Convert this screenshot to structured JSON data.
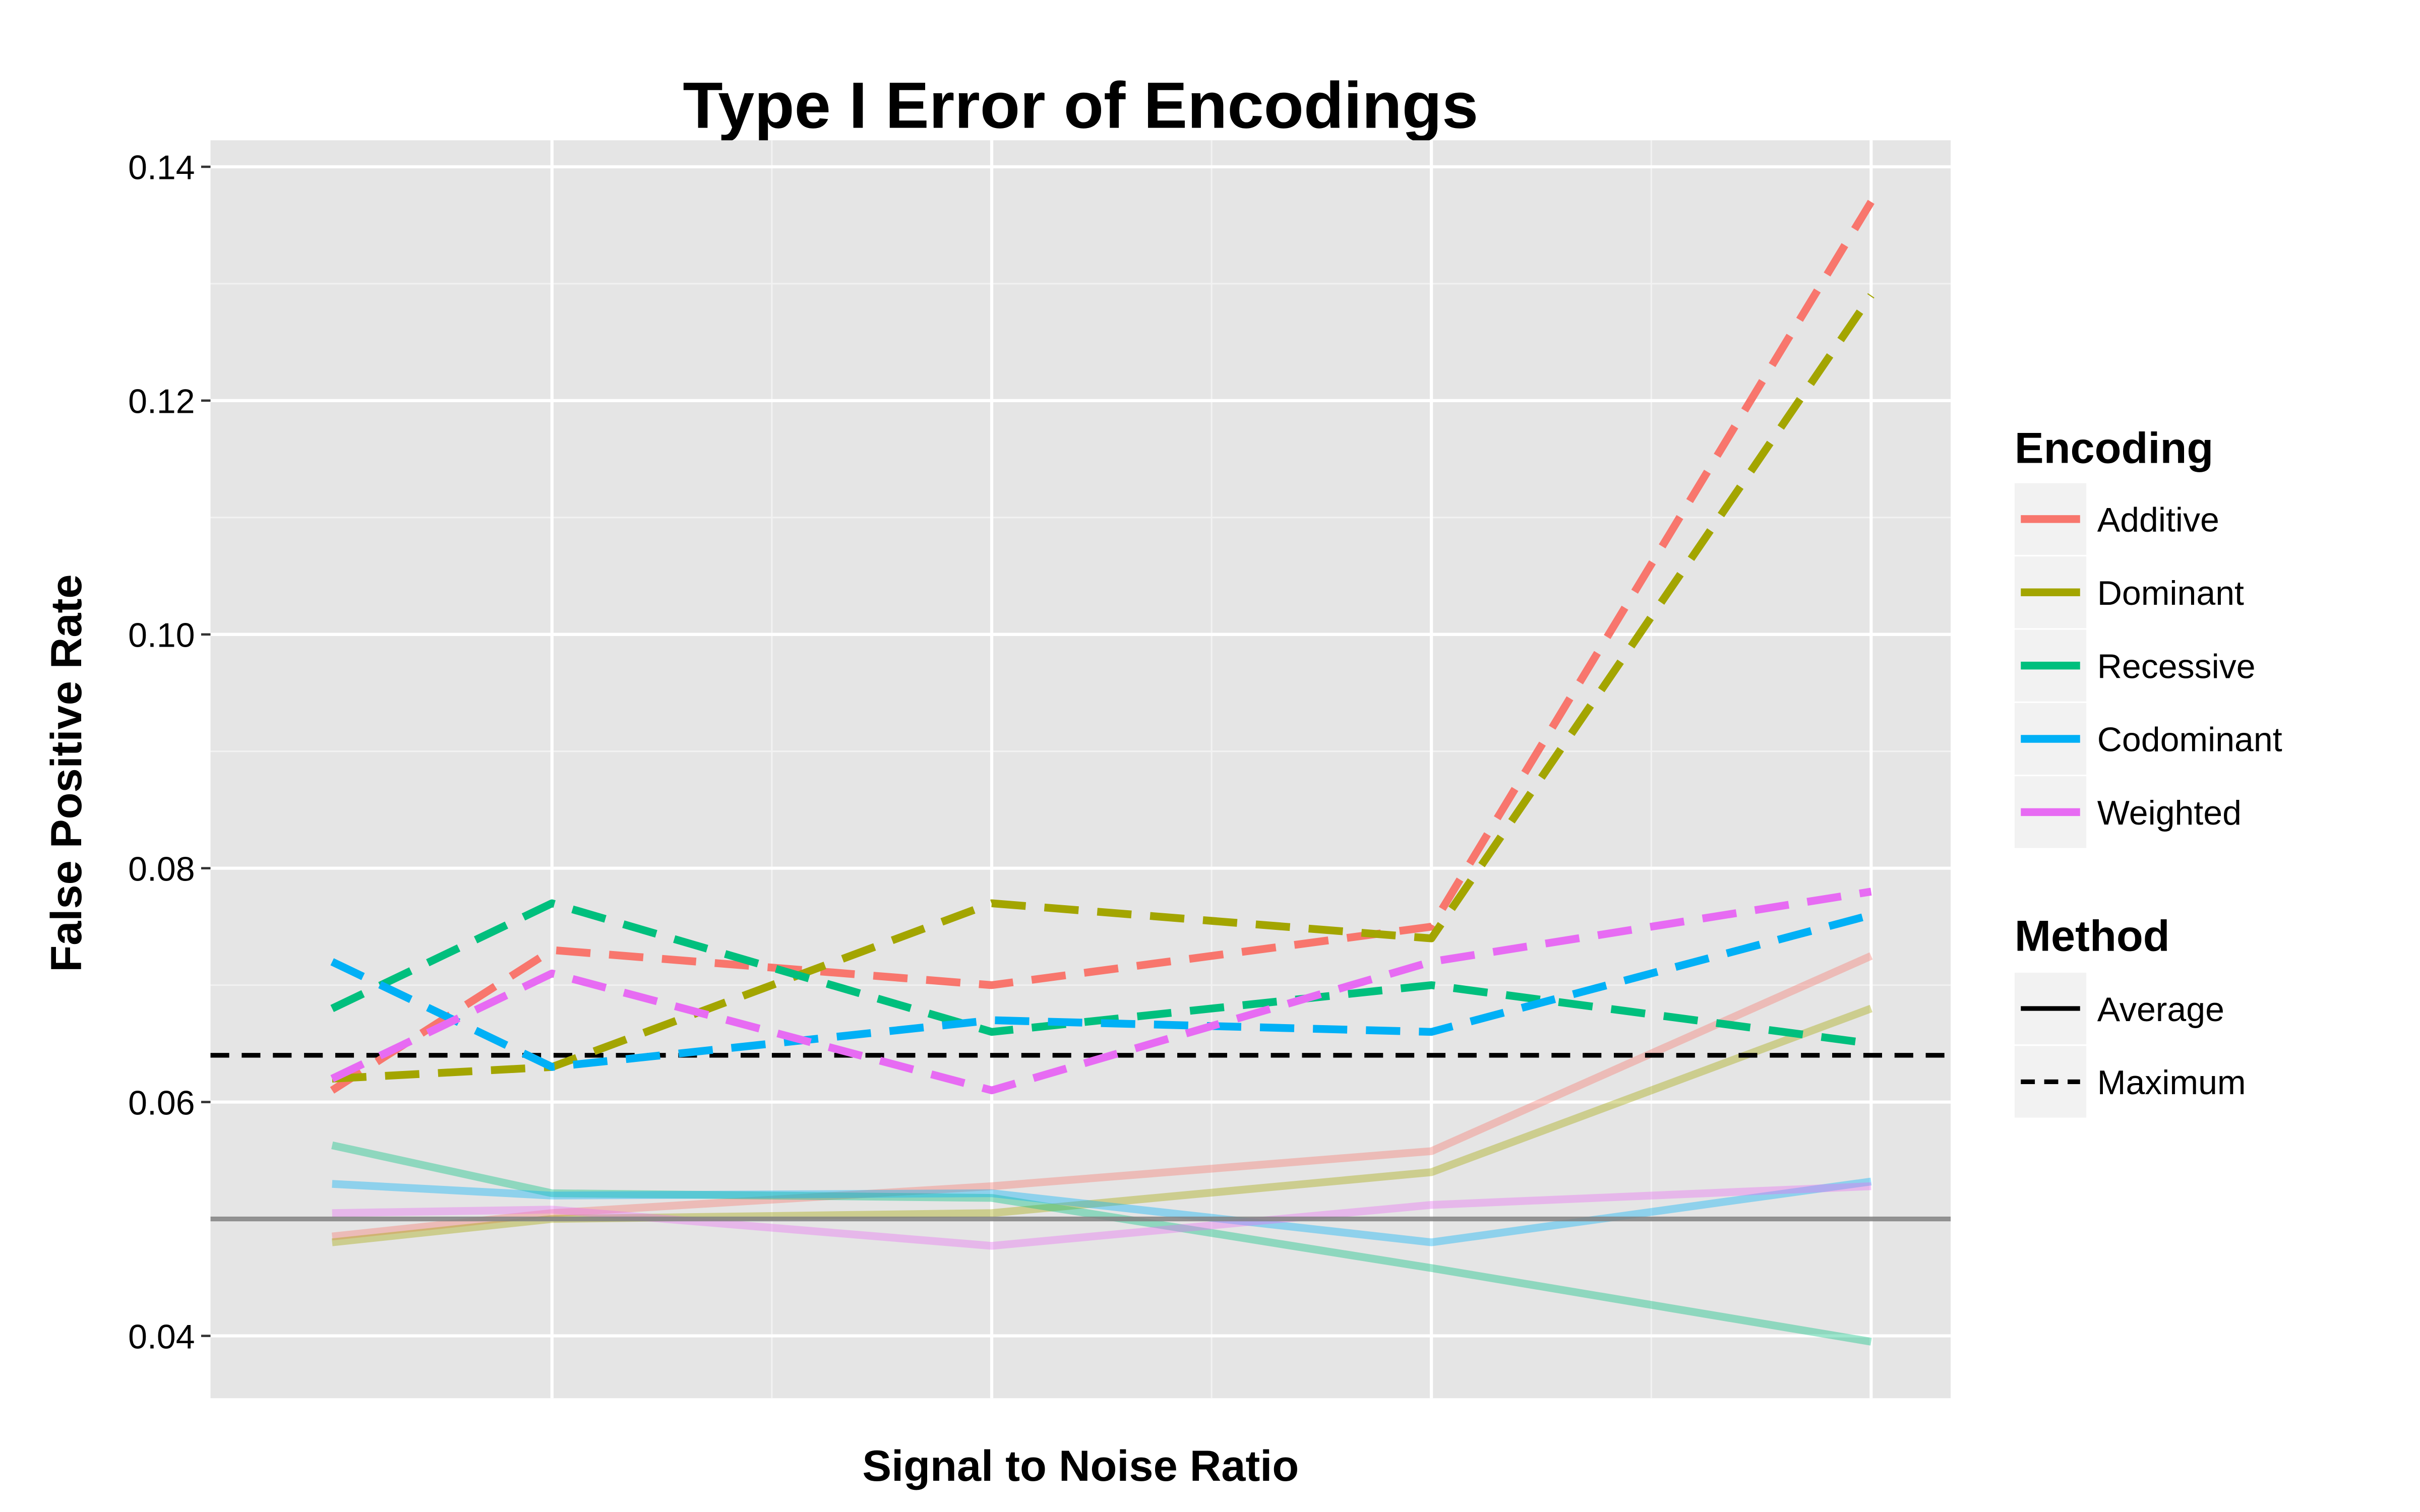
{
  "chart_data": {
    "type": "line",
    "title": "Type I Error of Encodings",
    "xlabel": "Signal to Noise Ratio",
    "ylabel": "False Positive Rate",
    "x": [
      1,
      2,
      3,
      4,
      5
    ],
    "ylim": [
      0.035,
      0.145
    ],
    "yticks": [
      0.04,
      0.06,
      0.08,
      0.1,
      0.12,
      0.14
    ],
    "ytick_labels": [
      "0.04",
      "0.06",
      "0.08",
      "0.10",
      "0.12",
      "0.14"
    ],
    "grid": true,
    "reference_lines": [
      {
        "value": 0.05,
        "style": "solid",
        "color": "#808080"
      },
      {
        "value": 0.064,
        "style": "dashed",
        "color": "#000000"
      }
    ],
    "legend_position": "right",
    "legend": {
      "encoding_title": "Encoding",
      "method_title": "Method",
      "methods": [
        {
          "label": "Average",
          "style": "solid"
        },
        {
          "label": "Maximum",
          "style": "dashed"
        }
      ]
    },
    "series": [
      {
        "name": "Additive",
        "color": "#F8766D",
        "average": [
          0.0485,
          0.0505,
          0.0528,
          0.0558,
          0.0725
        ],
        "maximum": [
          0.061,
          0.073,
          0.07,
          0.075,
          0.137
        ]
      },
      {
        "name": "Dominant",
        "color": "#A3A500",
        "average": [
          0.048,
          0.05,
          0.0505,
          0.054,
          0.068
        ],
        "maximum": [
          0.062,
          0.063,
          0.077,
          0.074,
          0.129
        ]
      },
      {
        "name": "Recessive",
        "color": "#00BF7D",
        "average": [
          0.0563,
          0.0522,
          0.0518,
          0.0458,
          0.0395
        ],
        "maximum": [
          0.068,
          0.077,
          0.066,
          0.07,
          0.065
        ]
      },
      {
        "name": "Codominant",
        "color": "#00B0F6",
        "average": [
          0.053,
          0.052,
          0.0522,
          0.048,
          0.0532
        ],
        "maximum": [
          0.072,
          0.063,
          0.067,
          0.066,
          0.076
        ]
      },
      {
        "name": "Weighted",
        "color": "#E76BF3",
        "average": [
          0.0505,
          0.0508,
          0.0477,
          0.0512,
          0.0528
        ],
        "maximum": [
          0.062,
          0.071,
          0.061,
          0.072,
          0.078
        ]
      }
    ]
  }
}
